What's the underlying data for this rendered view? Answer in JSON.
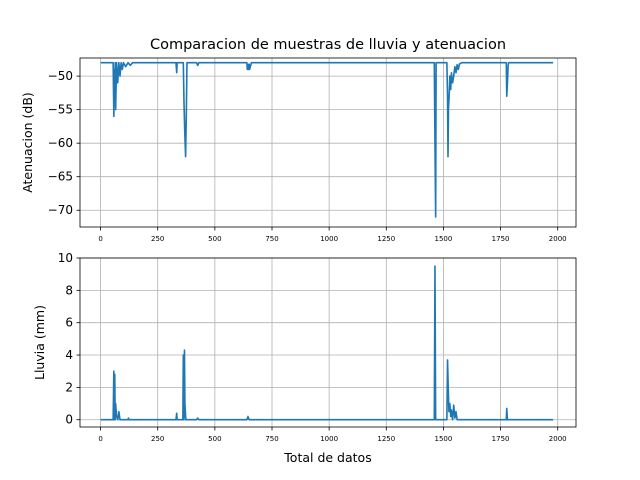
{
  "figure_title": "Comparacion de muestras de lluvia y atenuacion",
  "chart_data": [
    {
      "type": "line",
      "ylabel": "Atenuacion (dB)",
      "xlabel": "",
      "xlim": [
        -90,
        2080
      ],
      "ylim": [
        -72.5,
        -47.3
      ],
      "grid": true,
      "color": "#1f77b4",
      "xticks": [
        0,
        250,
        500,
        750,
        1000,
        1250,
        1500,
        1750,
        2000
      ],
      "xtick_labels": [
        "0",
        "250",
        "500",
        "750",
        "1000",
        "1250",
        "1500",
        "1750",
        "2000"
      ],
      "yticks": [
        -50,
        -55,
        -60,
        -65,
        -70
      ],
      "ytick_labels": [
        "−50",
        "−55",
        "−60",
        "−65",
        "−70"
      ],
      "x": [
        0,
        55,
        58,
        60,
        62,
        64,
        66,
        70,
        75,
        80,
        85,
        90,
        95,
        100,
        110,
        120,
        130,
        140,
        330,
        333,
        335,
        340,
        362,
        365,
        368,
        370,
        372,
        375,
        378,
        380,
        420,
        425,
        430,
        640,
        642,
        645,
        648,
        650,
        652,
        660,
        1460,
        1463,
        1466,
        1468,
        1470,
        1475,
        1500,
        1515,
        1518,
        1520,
        1522,
        1525,
        1528,
        1532,
        1535,
        1540,
        1545,
        1550,
        1555,
        1560,
        1565,
        1570,
        1580,
        1775,
        1777,
        1780,
        1783,
        1785,
        1980
      ],
      "y": [
        -48,
        -48,
        -56,
        -49,
        -53,
        -48,
        -55,
        -48,
        -51,
        -48,
        -50,
        -48,
        -49,
        -48,
        -48.6,
        -48,
        -48.4,
        -48,
        -48,
        -49.5,
        -48,
        -48,
        -48,
        -54,
        -58,
        -60,
        -62,
        -56,
        -48,
        -48,
        -48,
        -48.4,
        -48,
        -48,
        -49,
        -48.3,
        -49,
        -48.2,
        -49,
        -48,
        -48,
        -60,
        -71,
        -48,
        -48,
        -48,
        -48,
        -48,
        -53,
        -62,
        -55,
        -53,
        -50,
        -52,
        -49.5,
        -51,
        -50,
        -48.6,
        -49.5,
        -48.3,
        -49,
        -48.2,
        -48,
        -48,
        -53,
        -51,
        -48.5,
        -48,
        -48
      ]
    },
    {
      "type": "line",
      "ylabel": "Lluvia (mm)",
      "xlabel": "Total de datos",
      "xlim": [
        -90,
        2080
      ],
      "ylim": [
        -0.45,
        10
      ],
      "grid": true,
      "color": "#1f77b4",
      "xticks": [
        0,
        250,
        500,
        750,
        1000,
        1250,
        1500,
        1750,
        2000
      ],
      "xtick_labels": [
        "0",
        "250",
        "500",
        "750",
        "1000",
        "1250",
        "1500",
        "1750",
        "2000"
      ],
      "yticks": [
        0,
        2,
        4,
        6,
        8,
        10
      ],
      "ytick_labels": [
        "0",
        "2",
        "4",
        "6",
        "8",
        "10"
      ],
      "x": [
        0,
        55,
        58,
        60,
        62,
        64,
        66,
        70,
        75,
        80,
        85,
        90,
        120,
        122,
        124,
        330,
        333,
        335,
        360,
        362,
        365,
        367,
        369,
        371,
        373,
        376,
        420,
        425,
        430,
        640,
        645,
        650,
        655,
        1460,
        1463,
        1466,
        1469,
        1472,
        1510,
        1515,
        1518,
        1521,
        1524,
        1528,
        1532,
        1535,
        1540,
        1545,
        1550,
        1555,
        1560,
        1565,
        1775,
        1777,
        1780,
        1785,
        1980
      ],
      "y": [
        0,
        0,
        3,
        0,
        2.8,
        0,
        1,
        0.2,
        0,
        0.5,
        0,
        0,
        0,
        0.1,
        0,
        0,
        0.4,
        0,
        0,
        4,
        0,
        4.3,
        1,
        0.5,
        0,
        0,
        0,
        0.1,
        0,
        0,
        0.2,
        0,
        0,
        0,
        9.5,
        0,
        0,
        0,
        0,
        0,
        3.7,
        2,
        0.5,
        1,
        0.2,
        0.6,
        0,
        0.9,
        0.1,
        0.5,
        0,
        0,
        0,
        0.7,
        0,
        0,
        0
      ]
    }
  ]
}
